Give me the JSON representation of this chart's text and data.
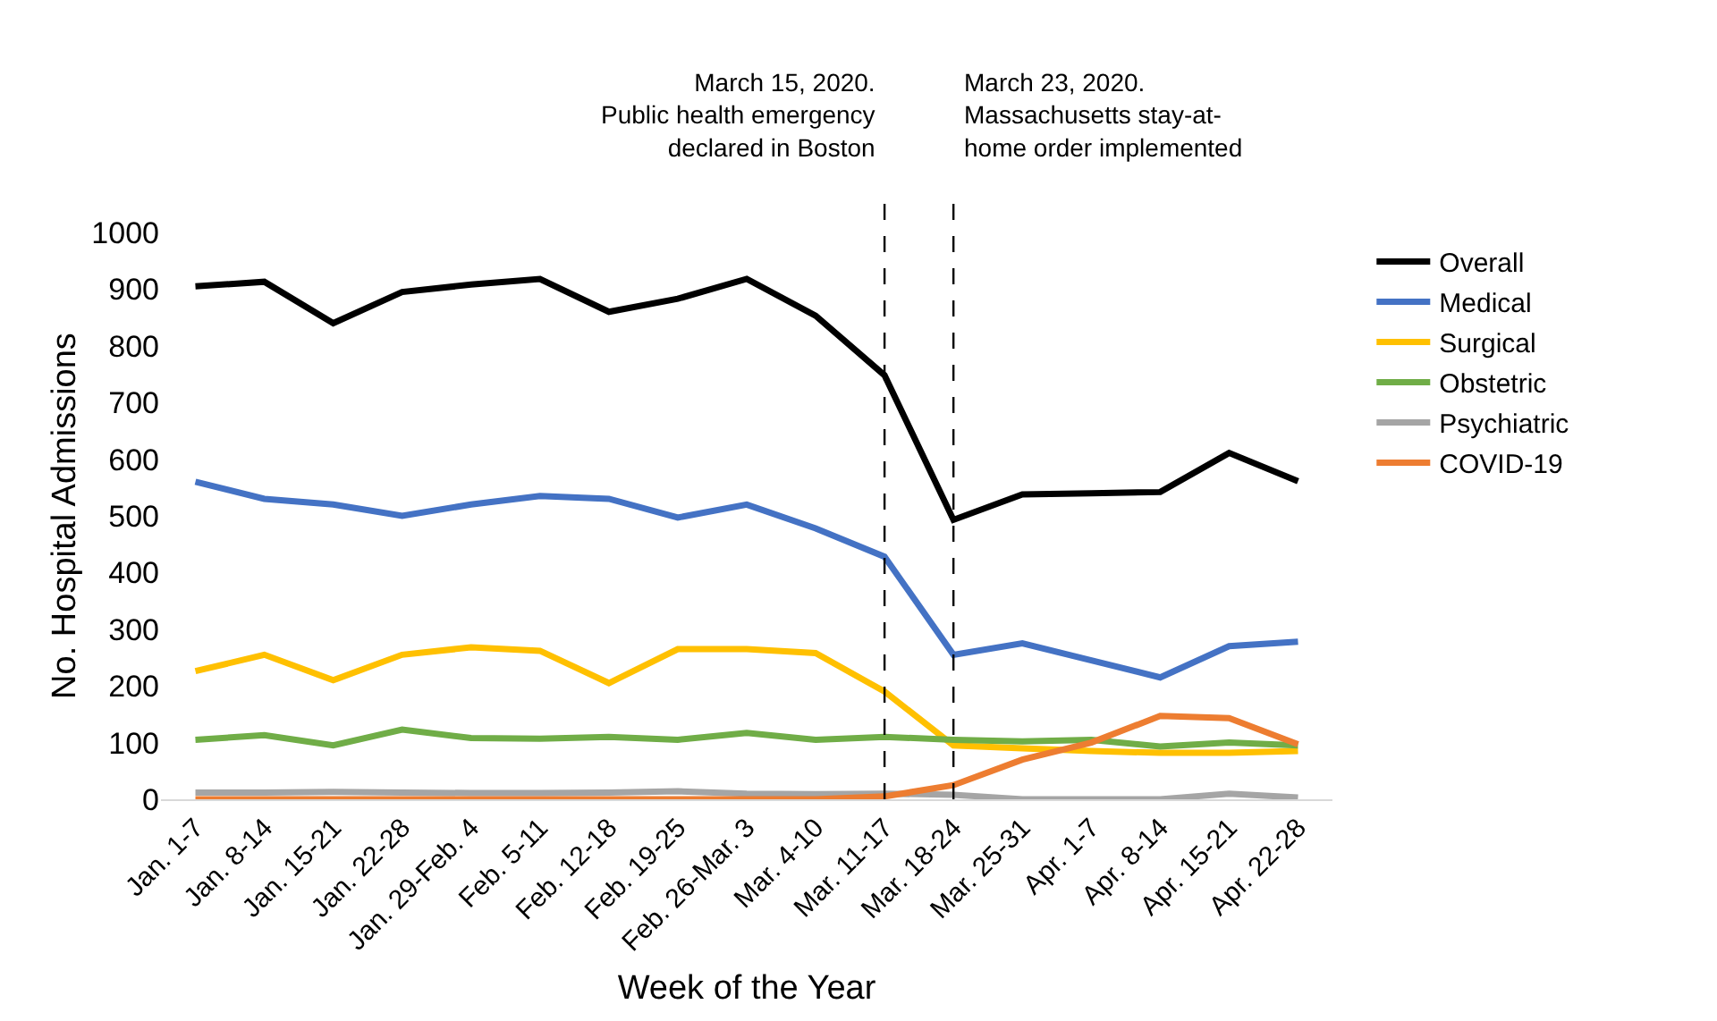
{
  "chart_data": {
    "type": "line",
    "xlabel": "Week of the Year",
    "ylabel": "No. Hospital Admissions",
    "categories": [
      "Jan. 1-7",
      "Jan. 8-14",
      "Jan. 15-21",
      "Jan. 22-28",
      "Jan. 29-Feb. 4",
      "Feb. 5-11",
      "Feb. 12-18",
      "Feb. 19-25",
      "Feb. 26-Mar. 3",
      "Mar. 4-10",
      "Mar. 11-17",
      "Mar. 18-24",
      "Mar. 25-31",
      "Apr. 1-7",
      "Apr. 8-14",
      "Apr. 15-21",
      "Apr. 22-28"
    ],
    "series": [
      {
        "name": "Overall",
        "color": "#000000",
        "values": [
          905,
          913,
          840,
          895,
          908,
          918,
          860,
          883,
          918,
          853,
          748,
          493,
          538,
          540,
          542,
          611,
          561
        ]
      },
      {
        "name": "Medical",
        "color": "#4472c4",
        "values": [
          560,
          530,
          520,
          500,
          520,
          535,
          530,
          497,
          520,
          478,
          428,
          255,
          275,
          245,
          215,
          270,
          278
        ]
      },
      {
        "name": "Surgical",
        "color": "#ffc000",
        "values": [
          226,
          255,
          210,
          255,
          268,
          262,
          205,
          265,
          265,
          258,
          190,
          95,
          90,
          85,
          82,
          82,
          85
        ]
      },
      {
        "name": "Obstetric",
        "color": "#70ad47",
        "values": [
          105,
          113,
          95,
          123,
          108,
          107,
          110,
          105,
          117,
          105,
          110,
          105,
          102,
          105,
          93,
          100,
          95
        ]
      },
      {
        "name": "Psychiatric",
        "color": "#a5a5a5",
        "values": [
          12,
          12,
          13,
          12,
          11,
          11,
          12,
          14,
          10,
          9,
          10,
          8,
          0,
          0,
          0,
          10,
          3
        ]
      },
      {
        "name": "COVID-19",
        "color": "#ed7d31",
        "values": [
          0,
          0,
          0,
          0,
          0,
          0,
          0,
          0,
          0,
          0,
          5,
          25,
          70,
          100,
          147,
          143,
          97
        ]
      }
    ],
    "ylim": [
      0,
      1000
    ],
    "yticks": [
      0,
      100,
      200,
      300,
      400,
      500,
      600,
      700,
      800,
      900,
      1000
    ],
    "ref_lines": [
      {
        "axis": "x",
        "value": "Mar. 11-17",
        "label": "March 15, 2020.\nPublic health emergency\ndeclared in Boston",
        "color": "#000000",
        "line_style": "dashed"
      },
      {
        "axis": "x",
        "value": "Mar. 18-24",
        "label": "March 23, 2020.\nMassachusetts stay-at-\nhome order implemented",
        "color": "#000000",
        "line_style": "dashed"
      }
    ],
    "grid": false,
    "legend": "right",
    "marker": "none",
    "line_style": "solid"
  }
}
